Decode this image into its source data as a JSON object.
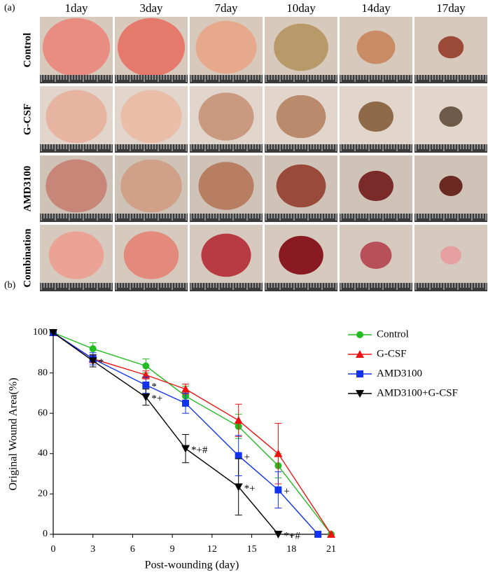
{
  "panel_a": {
    "label": "(a)",
    "columns": [
      "1day",
      "3day",
      "7day",
      "10day",
      "14day",
      "17day"
    ],
    "rows": [
      "Control",
      "G-CSF",
      "AMD3100",
      "Combination"
    ]
  },
  "chart_data": {
    "type": "line",
    "panel_label": "(b)",
    "xlabel": "Post-wounding (day)",
    "ylabel": "Original Wound Area(%)",
    "xlim": [
      0,
      21
    ],
    "ylim": [
      0,
      100
    ],
    "xticks": [
      0,
      3,
      6,
      9,
      12,
      15,
      18,
      21
    ],
    "yticks": [
      0,
      20,
      40,
      60,
      80,
      100
    ],
    "grid": false,
    "legend": "right",
    "series": [
      {
        "name": "Control",
        "color": "#22bb22",
        "marker": "circle",
        "x": [
          0,
          3,
          7,
          10,
          14,
          17,
          21
        ],
        "values": [
          100,
          92,
          83.5,
          68.5,
          53.5,
          34,
          0
        ],
        "errors": [
          null,
          3,
          3.5,
          5,
          6,
          6,
          null
        ],
        "significance": [
          null,
          null,
          null,
          null,
          null,
          null,
          null
        ]
      },
      {
        "name": "G-CSF",
        "color": "#ee1111",
        "marker": "triangle-up",
        "x": [
          0,
          3,
          7,
          10,
          14,
          17,
          21
        ],
        "values": [
          100,
          87,
          79,
          72,
          56.5,
          40,
          0
        ],
        "errors": [
          null,
          2,
          2,
          2.5,
          8,
          15,
          null
        ],
        "significance": [
          null,
          null,
          null,
          null,
          null,
          null,
          null
        ]
      },
      {
        "name": "AMD3100",
        "color": "#1133ee",
        "marker": "square",
        "x": [
          0,
          3,
          7,
          10,
          14,
          17,
          20
        ],
        "values": [
          100,
          87,
          74,
          65,
          39,
          22,
          0
        ],
        "errors": [
          null,
          3,
          4,
          5,
          10,
          9,
          null
        ],
        "significance": [
          null,
          null,
          "*",
          null,
          "+",
          "+",
          null
        ]
      },
      {
        "name": "AMD3100+G-CSF",
        "color": "#000000",
        "marker": "triangle-down",
        "x": [
          0,
          3,
          7,
          10,
          14,
          17
        ],
        "values": [
          100,
          86,
          68,
          42.5,
          23.5,
          0
        ],
        "errors": [
          null,
          3,
          4,
          7,
          14,
          null
        ],
        "significance": [
          null,
          "*",
          "*+",
          "*+#",
          "*+",
          "*+#"
        ]
      }
    ]
  }
}
